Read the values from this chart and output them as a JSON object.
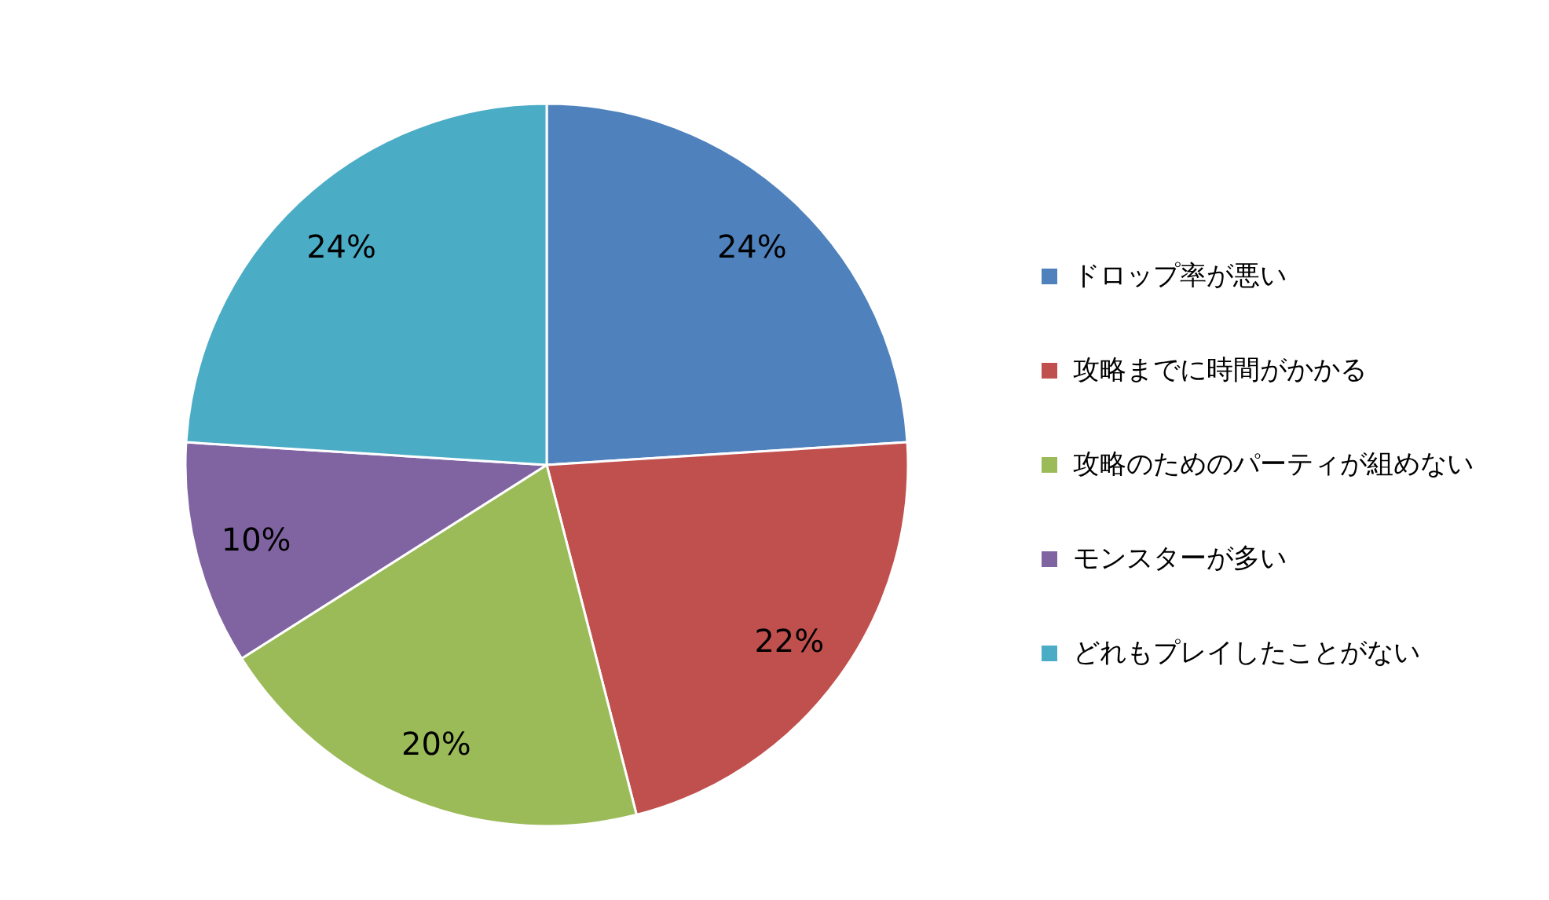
{
  "chart_data": {
    "type": "pie",
    "categories": [
      "ドロップ率が悪い",
      "攻略までに時間がかかる",
      "攻略のためのパーティが組めない",
      "モンスターが多い",
      "どれもプレイしたことがない"
    ],
    "values": [
      24,
      22,
      20,
      10,
      24
    ],
    "colors": [
      "#4f81bd",
      "#c0504d",
      "#9bbb59",
      "#8064a2",
      "#4bacc6"
    ],
    "value_labels": [
      "24%",
      "22%",
      "20%",
      "10%",
      "24%"
    ],
    "legend": "right"
  }
}
